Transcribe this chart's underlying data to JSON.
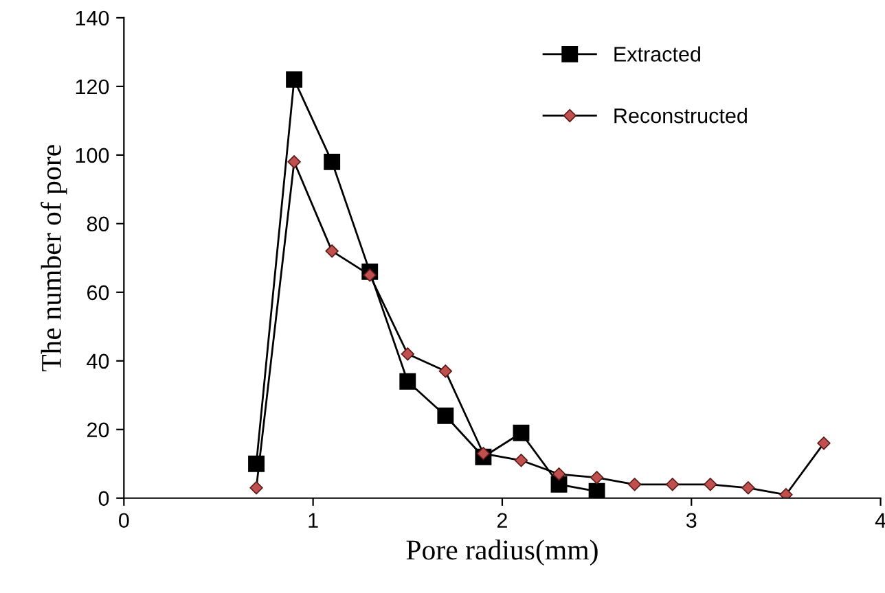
{
  "chart_data": {
    "type": "line",
    "xlabel": "Pore radius(mm)",
    "ylabel": "The number of pore",
    "xlim": [
      0,
      4
    ],
    "xticks": [
      0,
      1,
      2,
      3,
      4
    ],
    "ylim": [
      0,
      140
    ],
    "yticks": [
      0,
      20,
      40,
      60,
      80,
      100,
      120,
      140
    ],
    "grid": false,
    "legend": "top right",
    "series": [
      {
        "name": "Extracted",
        "color": "#000000",
        "marker": "square",
        "x": [
          0.7,
          0.9,
          1.1,
          1.3,
          1.5,
          1.7,
          1.9,
          2.1,
          2.3,
          2.5
        ],
        "values": [
          10,
          122,
          98,
          66,
          34,
          24,
          12,
          19,
          4,
          2
        ]
      },
      {
        "name": "Reconstructed",
        "color": "#c0504d",
        "marker": "diamond",
        "x": [
          0.7,
          0.9,
          1.1,
          1.3,
          1.5,
          1.7,
          1.9,
          2.1,
          2.3,
          2.5,
          2.7,
          2.9,
          3.1,
          3.3,
          3.5,
          3.7
        ],
        "values": [
          3,
          98,
          72,
          65,
          42,
          37,
          13,
          11,
          7,
          6,
          4,
          4,
          4,
          3,
          1,
          16
        ]
      }
    ]
  }
}
